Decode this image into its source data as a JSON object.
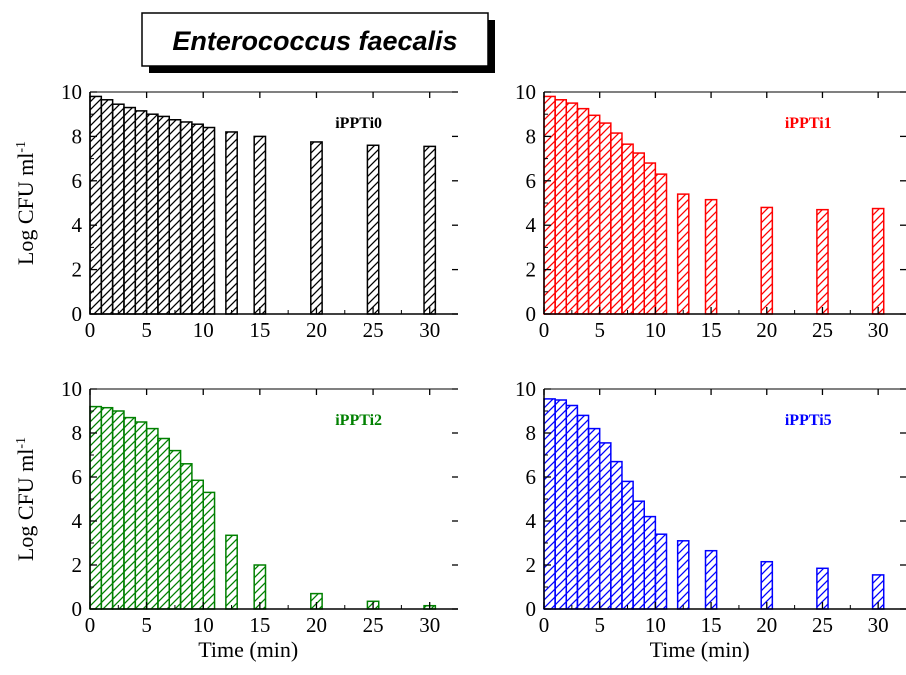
{
  "figure_title": "Enterococcus faecalis",
  "chart_data": [
    {
      "type": "bar",
      "panel_label": "iPPTi0",
      "color": "#000000",
      "x": [
        0.5,
        1.5,
        2.5,
        3.5,
        4.5,
        5.5,
        6.5,
        7.5,
        8.5,
        9.5,
        10.5,
        12.5,
        15,
        20,
        25,
        30
      ],
      "values": [
        9.8,
        9.65,
        9.45,
        9.3,
        9.15,
        9.0,
        8.9,
        8.75,
        8.65,
        8.55,
        8.4,
        8.2,
        8.0,
        7.75,
        7.6,
        7.55
      ],
      "xlim": [
        0,
        32.5
      ],
      "ylim": [
        0,
        10
      ],
      "xticks": [
        0,
        5,
        10,
        15,
        20,
        25,
        30
      ],
      "yticks": [
        0,
        2,
        4,
        6,
        8,
        10
      ],
      "xlabel": "",
      "ylabel": "Log CFU ml",
      "ylabel_sup": "-1"
    },
    {
      "type": "bar",
      "panel_label": "iPPTi1",
      "color": "#ff0000",
      "x": [
        0.5,
        1.5,
        2.5,
        3.5,
        4.5,
        5.5,
        6.5,
        7.5,
        8.5,
        9.5,
        10.5,
        12.5,
        15,
        20,
        25,
        30
      ],
      "values": [
        9.8,
        9.65,
        9.5,
        9.25,
        8.95,
        8.6,
        8.15,
        7.65,
        7.25,
        6.8,
        6.3,
        5.4,
        5.15,
        4.8,
        4.7,
        4.75
      ],
      "xlim": [
        0,
        32.5
      ],
      "ylim": [
        0,
        10
      ],
      "xticks": [
        0,
        5,
        10,
        15,
        20,
        25,
        30
      ],
      "yticks": [
        0,
        2,
        4,
        6,
        8,
        10
      ],
      "xlabel": "",
      "ylabel": ""
    },
    {
      "type": "bar",
      "panel_label": "iPPTi2",
      "color": "#008000",
      "x": [
        0.5,
        1.5,
        2.5,
        3.5,
        4.5,
        5.5,
        6.5,
        7.5,
        8.5,
        9.5,
        10.5,
        12.5,
        15,
        20,
        25,
        30
      ],
      "values": [
        9.2,
        9.15,
        9.0,
        8.7,
        8.5,
        8.2,
        7.75,
        7.2,
        6.6,
        5.85,
        5.3,
        3.35,
        2.0,
        0.7,
        0.35,
        0.15
      ],
      "xlim": [
        0,
        32.5
      ],
      "ylim": [
        0,
        10
      ],
      "xticks": [
        0,
        5,
        10,
        15,
        20,
        25,
        30
      ],
      "yticks": [
        0,
        2,
        4,
        6,
        8,
        10
      ],
      "xlabel": "Time (min)",
      "ylabel": "Log CFU ml",
      "ylabel_sup": "-1"
    },
    {
      "type": "bar",
      "panel_label": "iPPTi5",
      "color": "#0000ff",
      "x": [
        0.5,
        1.5,
        2.5,
        3.5,
        4.5,
        5.5,
        6.5,
        7.5,
        8.5,
        9.5,
        10.5,
        12.5,
        15,
        20,
        25,
        30
      ],
      "values": [
        9.55,
        9.5,
        9.25,
        8.8,
        8.2,
        7.55,
        6.7,
        5.8,
        4.9,
        4.2,
        3.4,
        3.1,
        2.65,
        2.15,
        1.85,
        1.55
      ],
      "xlim": [
        0,
        32.5
      ],
      "ylim": [
        0,
        10
      ],
      "xticks": [
        0,
        5,
        10,
        15,
        20,
        25,
        30
      ],
      "yticks": [
        0,
        2,
        4,
        6,
        8,
        10
      ],
      "xlabel": "Time (min)",
      "ylabel": ""
    }
  ]
}
